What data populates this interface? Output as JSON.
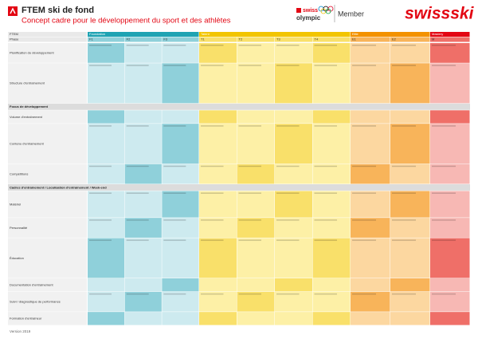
{
  "header": {
    "title": "FTEM ski de fond",
    "subtitle": "Concept cadre pour le développement du sport et des athlètes",
    "partner_prefix": "swiss",
    "partner": "olympic",
    "member": "Member",
    "brand": "swissski"
  },
  "table": {
    "corner": [
      "FTEM",
      "Phase"
    ],
    "phases": [
      {
        "label": "Foundation",
        "subs": [
          "F1",
          "F2",
          "F3"
        ]
      },
      {
        "label": "Talent",
        "subs": [
          "T1",
          "T2",
          "T3",
          "T4"
        ]
      },
      {
        "label": "Elite",
        "subs": [
          "E1",
          "E2"
        ]
      },
      {
        "label": "Mastery",
        "subs": [
          "M"
        ]
      }
    ],
    "rows": [
      {
        "label": "Planification du développement"
      },
      {
        "label": "Structure d'entraînement"
      },
      {
        "label": "Focus de développement",
        "section": true
      },
      {
        "label": "Volume d'entraînement"
      },
      {
        "label": "Contenu d'entraînement"
      },
      {
        "label": "Compétitions"
      },
      {
        "label": "Cadres d'entraînement / Localisation d'entraînement / Week-end",
        "section": true
      },
      {
        "label": "Matériel"
      },
      {
        "label": "Personnalité"
      },
      {
        "label": "Éducation"
      },
      {
        "label": "Documentation d'entraînement"
      },
      {
        "label": "Suivi / diagnostique de performance"
      },
      {
        "label": "Formation d'entraîneur"
      }
    ]
  },
  "footer": "Version 2019"
}
